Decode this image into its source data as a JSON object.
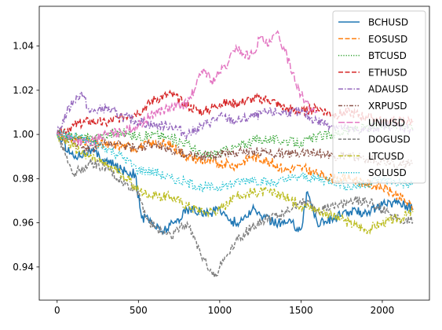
{
  "chart_data": {
    "type": "line",
    "title": "",
    "xlabel": "",
    "ylabel": "",
    "xlim": [
      -110,
      2290
    ],
    "ylim": [
      0.925,
      1.058
    ],
    "xticks": [
      0,
      500,
      1000,
      1500,
      2000
    ],
    "xtick_labels": [
      "0",
      "500",
      "1000",
      "1500",
      "2000"
    ],
    "yticks": [
      0.94,
      0.96,
      0.98,
      1.0,
      1.02,
      1.04
    ],
    "ytick_labels": [
      "0.94",
      "0.96",
      "0.98",
      "1.00",
      "1.02",
      "1.04"
    ],
    "legend_position": "upper-right",
    "grid": false,
    "series": [
      {
        "name": "BCHUSD",
        "color": "#1f77b4",
        "dash": "solid",
        "x": [
          0,
          100,
          200,
          300,
          400,
          480,
          520,
          560,
          640,
          720,
          800,
          880,
          940,
          1000,
          1060,
          1120,
          1200,
          1280,
          1360,
          1440,
          1500,
          1540,
          1600,
          1700,
          1800,
          1900,
          2000,
          2100,
          2190
        ],
        "y": [
          1.0,
          0.99,
          0.993,
          0.988,
          0.984,
          0.982,
          0.962,
          0.962,
          0.956,
          0.96,
          0.966,
          0.965,
          0.964,
          0.967,
          0.961,
          0.96,
          0.966,
          0.962,
          0.96,
          0.96,
          0.957,
          0.974,
          0.96,
          0.962,
          0.965,
          0.965,
          0.968,
          0.97,
          0.966
        ]
      },
      {
        "name": "EOSUSD",
        "color": "#ff7f0e",
        "dash": "dashed",
        "x": [
          0,
          100,
          200,
          300,
          400,
          500,
          600,
          700,
          800,
          900,
          1000,
          1100,
          1200,
          1300,
          1400,
          1500,
          1600,
          1700,
          1800,
          1900,
          2000,
          2100,
          2190
        ],
        "y": [
          1.0,
          0.998,
          0.997,
          0.995,
          0.995,
          0.994,
          0.996,
          0.995,
          0.99,
          0.988,
          0.987,
          0.986,
          0.99,
          0.988,
          0.984,
          0.985,
          0.982,
          0.98,
          0.98,
          0.978,
          0.976,
          0.972,
          0.967
        ]
      },
      {
        "name": "BTCUSD",
        "color": "#2ca02c",
        "dash": "dotted",
        "x": [
          0,
          100,
          200,
          300,
          400,
          500,
          600,
          700,
          800,
          900,
          1000,
          1100,
          1200,
          1300,
          1400,
          1500,
          1600,
          1700,
          1800,
          1900,
          2000,
          2100,
          2190
        ],
        "y": [
          1.0,
          0.999,
          0.998,
          1.0,
          1.001,
          0.999,
          1.0,
          0.998,
          0.996,
          0.99,
          0.992,
          0.994,
          0.997,
          0.998,
          0.997,
          0.996,
          0.999,
          1.0,
          1.002,
          1.003,
          1.004,
          1.005,
          1.003
        ]
      },
      {
        "name": "ETHUSD",
        "color": "#d62728",
        "dash": "dashed",
        "x": [
          0,
          100,
          200,
          300,
          400,
          500,
          600,
          700,
          800,
          900,
          1000,
          1100,
          1200,
          1300,
          1400,
          1500,
          1600,
          1700,
          1800,
          1900,
          2000,
          2100,
          2190
        ],
        "y": [
          1.0,
          1.004,
          1.006,
          1.005,
          1.008,
          1.01,
          1.016,
          1.018,
          1.013,
          1.01,
          1.014,
          1.014,
          1.016,
          1.016,
          1.012,
          1.01,
          1.012,
          1.009,
          1.01,
          1.008,
          1.006,
          1.006,
          1.006
        ]
      },
      {
        "name": "ADAUSD",
        "color": "#9467bd",
        "dash": "dashdot",
        "x": [
          0,
          60,
          100,
          150,
          200,
          300,
          400,
          500,
          600,
          700,
          800,
          900,
          1000,
          1100,
          1200,
          1300,
          1400,
          1500,
          1600,
          1700,
          1800,
          1900,
          2000,
          2100,
          2190
        ],
        "y": [
          1.0,
          1.01,
          1.015,
          1.019,
          1.01,
          1.012,
          1.008,
          1.006,
          1.004,
          1.004,
          1.0,
          1.004,
          1.008,
          1.006,
          1.008,
          1.01,
          1.01,
          1.01,
          1.006,
          1.004,
          1.002,
          1.002,
          1.004,
          1.004,
          1.002
        ]
      },
      {
        "name": "XRPUSD",
        "color": "#8c564b",
        "dash": "dashdotdot",
        "x": [
          0,
          100,
          200,
          300,
          400,
          500,
          600,
          700,
          800,
          900,
          1000,
          1100,
          1200,
          1300,
          1400,
          1500,
          1600,
          1700,
          1800,
          1900,
          2000,
          2100,
          2190
        ],
        "y": [
          1.0,
          0.996,
          0.994,
          0.996,
          0.995,
          0.994,
          0.996,
          0.993,
          0.991,
          0.99,
          0.991,
          0.992,
          0.992,
          0.992,
          0.991,
          0.992,
          0.992,
          0.99,
          0.99,
          0.989,
          0.988,
          0.986,
          0.987
        ]
      },
      {
        "name": "UNIUSD",
        "color": "#e377c2",
        "dash": "longdash",
        "x": [
          0,
          100,
          200,
          300,
          400,
          500,
          600,
          700,
          800,
          850,
          900,
          950,
          1000,
          1050,
          1100,
          1150,
          1200,
          1250,
          1300,
          1350,
          1400,
          1450,
          1500,
          1550,
          1600
        ],
        "y": [
          1.0,
          0.998,
          0.996,
          1.0,
          1.001,
          1.004,
          1.01,
          1.012,
          1.014,
          1.021,
          1.03,
          1.024,
          1.028,
          1.032,
          1.04,
          1.036,
          1.036,
          1.044,
          1.04,
          1.046,
          1.038,
          1.028,
          1.018,
          1.012,
          1.01
        ]
      },
      {
        "name": "DOGUSD",
        "color": "#7f7f7f",
        "dash": "dashed2",
        "x": [
          0,
          60,
          100,
          200,
          300,
          400,
          500,
          550,
          600,
          700,
          800,
          850,
          900,
          950,
          980,
          1000,
          1050,
          1100,
          1200,
          1300,
          1400,
          1500,
          1600,
          1700,
          1800,
          1900,
          2000,
          2100,
          2190
        ],
        "y": [
          1.0,
          0.99,
          0.982,
          0.987,
          0.985,
          0.978,
          0.974,
          0.962,
          0.958,
          0.954,
          0.96,
          0.952,
          0.944,
          0.938,
          0.936,
          0.94,
          0.946,
          0.952,
          0.958,
          0.962,
          0.964,
          0.97,
          0.966,
          0.967,
          0.97,
          0.97,
          0.966,
          0.962,
          0.961
        ]
      },
      {
        "name": "LTCUSD",
        "color": "#bcbd22",
        "dash": "dashdot",
        "x": [
          0,
          100,
          200,
          300,
          400,
          500,
          600,
          700,
          800,
          900,
          1000,
          1100,
          1200,
          1300,
          1400,
          1500,
          1600,
          1700,
          1800,
          1900,
          2000,
          2100,
          2190
        ],
        "y": [
          1.0,
          0.994,
          0.99,
          0.986,
          0.982,
          0.975,
          0.972,
          0.972,
          0.968,
          0.965,
          0.966,
          0.972,
          0.974,
          0.974,
          0.972,
          0.968,
          0.966,
          0.963,
          0.96,
          0.957,
          0.96,
          0.962,
          0.965
        ]
      },
      {
        "name": "SOLUSD",
        "color": "#17becf",
        "dash": "dotted",
        "x": [
          0,
          100,
          200,
          300,
          400,
          500,
          600,
          700,
          800,
          900,
          1000,
          1100,
          1200,
          1300,
          1400,
          1500,
          1600,
          1700,
          1800,
          1900,
          2000,
          2100,
          2190
        ],
        "y": [
          1.0,
          0.999,
          0.997,
          0.994,
          0.99,
          0.984,
          0.983,
          0.98,
          0.978,
          0.976,
          0.976,
          0.978,
          0.98,
          0.978,
          0.979,
          0.981,
          0.98,
          0.979,
          0.976,
          0.978,
          0.98,
          0.978,
          0.977
        ]
      }
    ]
  }
}
